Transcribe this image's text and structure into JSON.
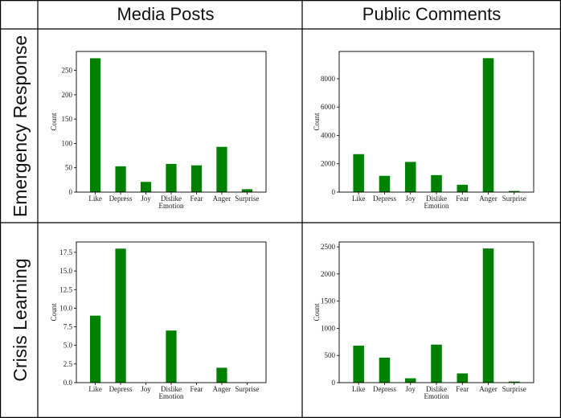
{
  "column_headers": [
    "Media Posts",
    "Public Comments"
  ],
  "row_headers": [
    "Emergency Response",
    "Crisis Learning"
  ],
  "chart_data": [
    {
      "type": "bar",
      "row": "Emergency Response",
      "column": "Media Posts",
      "categories": [
        "Like",
        "Depress",
        "Joy",
        "Dislike",
        "Fear",
        "Anger",
        "Surprise"
      ],
      "values": [
        275,
        53,
        21,
        58,
        55,
        93,
        6
      ],
      "xlabel": "Emotion",
      "ylabel": "Count",
      "ylim": [
        0,
        289
      ],
      "yticks": [
        "0",
        "50",
        "100",
        "150",
        "200",
        "250"
      ],
      "ytick_values": [
        0,
        50,
        100,
        150,
        200,
        250
      ],
      "color": "#008000"
    },
    {
      "type": "bar",
      "row": "Emergency Response",
      "column": "Public Comments",
      "categories": [
        "Like",
        "Depress",
        "Joy",
        "Dislike",
        "Fear",
        "Anger",
        "Surprise"
      ],
      "values": [
        2680,
        1150,
        2130,
        1200,
        520,
        9450,
        80
      ],
      "xlabel": "Emotion",
      "ylabel": "Count",
      "ylim": [
        0,
        9925
      ],
      "yticks": [
        "0",
        "2000",
        "4000",
        "6000",
        "8000"
      ],
      "ytick_values": [
        0,
        2000,
        4000,
        6000,
        8000
      ],
      "color": "#008000"
    },
    {
      "type": "bar",
      "row": "Crisis Learning",
      "column": "Media Posts",
      "categories": [
        "Like",
        "Depress",
        "Joy",
        "Dislike",
        "Fear",
        "Anger",
        "Surprise"
      ],
      "values": [
        9,
        18,
        0,
        7,
        0,
        2,
        0
      ],
      "xlabel": "Emotion",
      "ylabel": "Count",
      "ylim": [
        0,
        18.9
      ],
      "yticks": [
        "0.0",
        "2.5",
        "5.0",
        "7.5",
        "10.0",
        "12.5",
        "15.0",
        "17.5"
      ],
      "ytick_values": [
        0,
        2.5,
        5,
        7.5,
        10,
        12.5,
        15,
        17.5
      ],
      "color": "#008000"
    },
    {
      "type": "bar",
      "row": "Crisis Learning",
      "column": "Public Comments",
      "categories": [
        "Like",
        "Depress",
        "Joy",
        "Dislike",
        "Fear",
        "Anger",
        "Surprise"
      ],
      "values": [
        680,
        460,
        80,
        700,
        170,
        2470,
        20
      ],
      "xlabel": "Emotion",
      "ylabel": "Count",
      "ylim": [
        0,
        2590
      ],
      "yticks": [
        "0",
        "500",
        "1000",
        "1500",
        "2000",
        "2500"
      ],
      "ytick_values": [
        0,
        500,
        1000,
        1500,
        2000,
        2500
      ],
      "color": "#008000"
    }
  ]
}
